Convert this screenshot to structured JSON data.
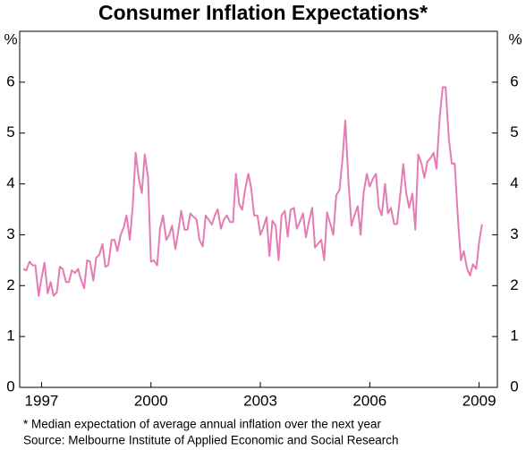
{
  "chart_data": {
    "type": "line",
    "title": "Consumer Inflation Expectations*",
    "y_unit": "%",
    "notes": [
      "*  Median expectation of average annual inflation over the next year",
      "Source: Melbourne Institute of Applied Economic and Social Research"
    ],
    "color": "#e47bb4",
    "x": [
      1996.5,
      1996.58,
      1996.67,
      1996.75,
      1996.83,
      1996.92,
      1997,
      1997.08,
      1997.17,
      1997.25,
      1997.33,
      1997.42,
      1997.5,
      1997.58,
      1997.67,
      1997.75,
      1997.83,
      1997.92,
      1998,
      1998.08,
      1998.17,
      1998.25,
      1998.33,
      1998.42,
      1998.5,
      1998.58,
      1998.67,
      1998.75,
      1998.83,
      1998.92,
      1999,
      1999.08,
      1999.17,
      1999.25,
      1999.33,
      1999.42,
      1999.5,
      1999.58,
      1999.67,
      1999.75,
      1999.83,
      1999.92,
      2000,
      2000.08,
      2000.17,
      2000.25,
      2000.33,
      2000.42,
      2000.5,
      2000.58,
      2000.67,
      2000.75,
      2000.83,
      2000.92,
      2001,
      2001.08,
      2001.17,
      2001.25,
      2001.33,
      2001.42,
      2001.5,
      2001.58,
      2001.67,
      2001.75,
      2001.83,
      2001.92,
      2002,
      2002.08,
      2002.17,
      2002.25,
      2002.33,
      2002.42,
      2002.5,
      2002.58,
      2002.67,
      2002.75,
      2002.83,
      2002.92,
      2003,
      2003.08,
      2003.17,
      2003.25,
      2003.33,
      2003.42,
      2003.5,
      2003.58,
      2003.67,
      2003.75,
      2003.83,
      2003.92,
      2004,
      2004.08,
      2004.17,
      2004.25,
      2004.33,
      2004.42,
      2004.5,
      2004.58,
      2004.67,
      2004.75,
      2004.83,
      2004.92,
      2005,
      2005.08,
      2005.17,
      2005.25,
      2005.33,
      2005.42,
      2005.5,
      2005.58,
      2005.67,
      2005.75,
      2005.83,
      2005.92,
      2006,
      2006.08,
      2006.17,
      2006.25,
      2006.33,
      2006.42,
      2006.5,
      2006.58,
      2006.67,
      2006.75,
      2006.83,
      2006.92,
      2007,
      2007.08,
      2007.17,
      2007.25,
      2007.33,
      2007.42,
      2007.5,
      2007.58,
      2007.67,
      2007.75,
      2007.83,
      2007.92,
      2008,
      2008.08,
      2008.17,
      2008.25,
      2008.33,
      2008.42,
      2008.5,
      2008.58,
      2008.67,
      2008.75,
      2008.83,
      2008.92,
      2009,
      2009.08
    ],
    "values": [
      2.33,
      2.3,
      2.47,
      2.4,
      2.4,
      1.8,
      2.15,
      2.45,
      1.85,
      2.07,
      1.8,
      1.87,
      2.37,
      2.33,
      2.07,
      2.07,
      2.3,
      2.25,
      2.33,
      2.12,
      1.95,
      2.5,
      2.47,
      2.1,
      2.55,
      2.6,
      2.82,
      2.37,
      2.4,
      2.9,
      2.9,
      2.68,
      3.0,
      3.14,
      3.38,
      2.9,
      3.56,
      4.61,
      4.09,
      3.82,
      4.58,
      4.12,
      2.47,
      2.5,
      2.4,
      3.12,
      3.38,
      2.9,
      3.0,
      3.18,
      2.72,
      3.07,
      3.47,
      3.1,
      3.1,
      3.42,
      3.35,
      3.3,
      2.9,
      2.77,
      3.38,
      3.3,
      3.2,
      3.38,
      3.5,
      3.12,
      3.3,
      3.38,
      3.25,
      3.25,
      4.2,
      3.6,
      3.49,
      3.88,
      4.2,
      3.91,
      3.38,
      3.38,
      3.0,
      3.14,
      3.35,
      2.58,
      3.28,
      3.18,
      2.5,
      3.38,
      3.47,
      2.96,
      3.49,
      3.53,
      3.12,
      3.25,
      3.42,
      2.95,
      3.25,
      3.53,
      2.75,
      2.82,
      2.9,
      2.5,
      3.44,
      3.21,
      3.0,
      3.77,
      3.88,
      4.47,
      5.25,
      4.0,
      3.18,
      3.38,
      3.56,
      3.0,
      3.81,
      4.2,
      3.95,
      4.09,
      4.2,
      3.53,
      3.38,
      4.0,
      3.42,
      3.53,
      3.21,
      3.21,
      3.74,
      4.39,
      3.82,
      3.53,
      3.81,
      3.1,
      4.58,
      4.4,
      4.12,
      4.44,
      4.51,
      4.61,
      4.3,
      5.32,
      5.9,
      5.9,
      4.88,
      4.4,
      4.4,
      3.3,
      2.5,
      2.68,
      2.33,
      2.2,
      2.42,
      2.33,
      2.86,
      3.21
    ],
    "xlim": [
      1996.4,
      2009.5
    ],
    "xticks": [
      1997,
      2000,
      2003,
      2006,
      2009
    ],
    "ylim": [
      0,
      7
    ],
    "yticks": [
      0,
      1,
      2,
      3,
      4,
      5,
      6
    ]
  }
}
